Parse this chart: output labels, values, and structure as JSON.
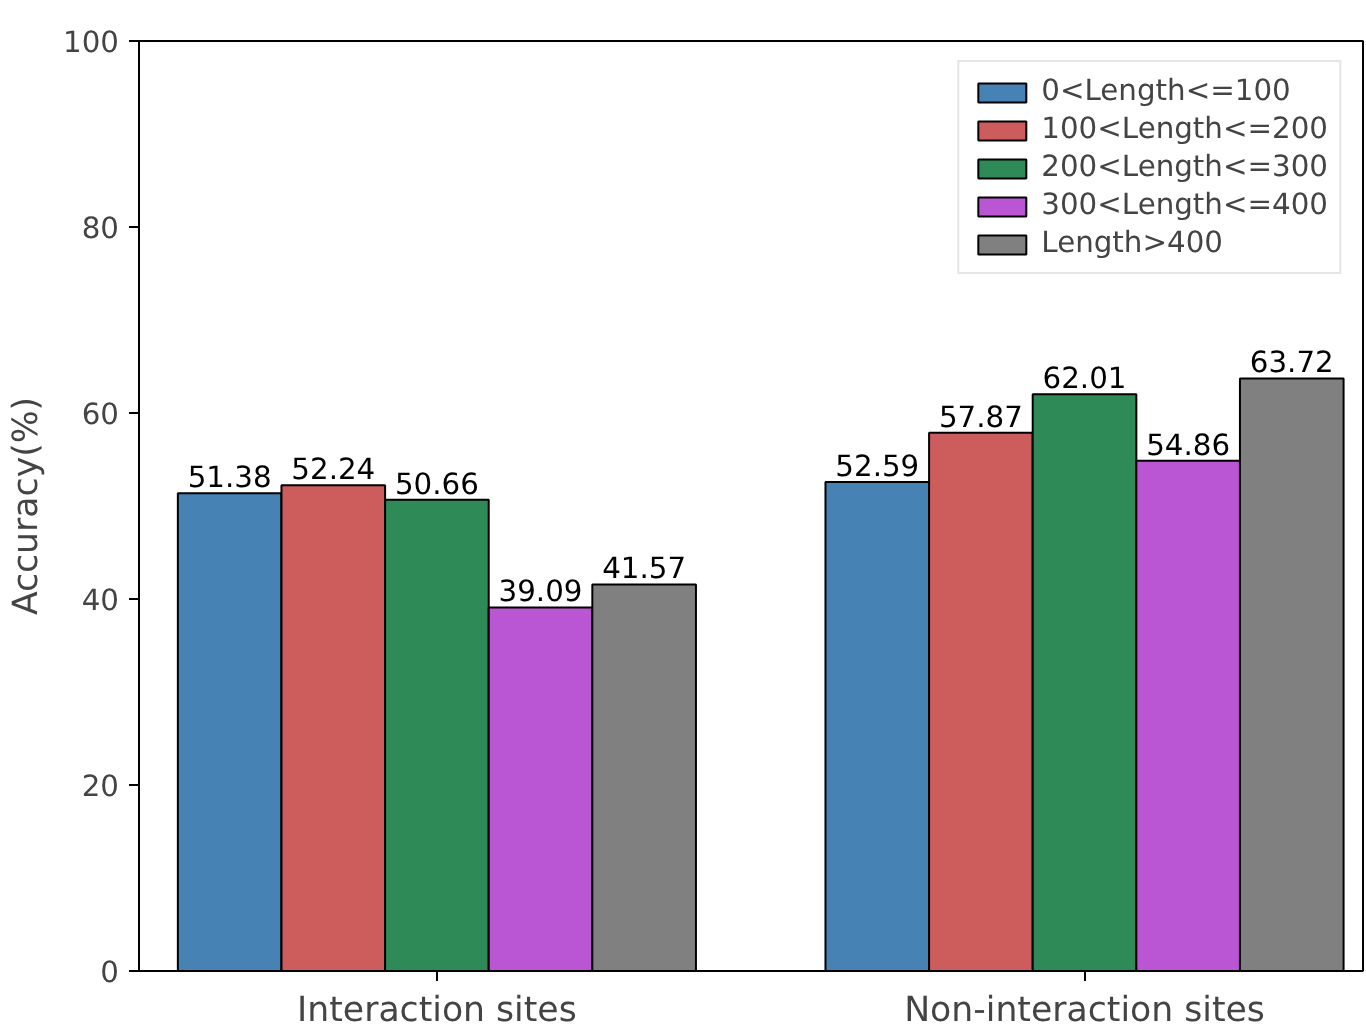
{
  "chart_data": {
    "type": "bar",
    "ylabel": "Accuracy(%)",
    "categories": [
      "Interaction sites",
      "Non-interaction sites"
    ],
    "series": [
      {
        "name": "0<Length<=100",
        "color": "#4682b4",
        "values": [
          51.38,
          52.59
        ]
      },
      {
        "name": "100<Length<=200",
        "color": "#cd5c5c",
        "values": [
          52.24,
          57.87
        ]
      },
      {
        "name": "200<Length<=300",
        "color": "#2e8b57",
        "values": [
          50.66,
          62.01
        ]
      },
      {
        "name": "300<Length<=400",
        "color": "#ba55d3",
        "values": [
          39.09,
          54.86
        ]
      },
      {
        "name": "Length>400",
        "color": "#808080",
        "values": [
          41.57,
          63.72
        ]
      }
    ],
    "ylim": [
      0,
      100
    ],
    "yticks": [
      0,
      20,
      40,
      60,
      80,
      100
    ],
    "grid": false,
    "legend": "top right",
    "data_labels": true
  }
}
